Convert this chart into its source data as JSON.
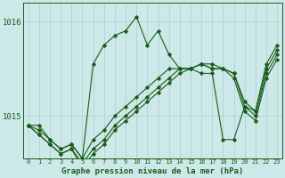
{
  "bg_color": "#cce8e8",
  "line_color": "#1a5c1a",
  "grid_color": "#aacfcf",
  "title": "Graphe pression niveau de la mer (hPa)",
  "xlim": [
    -0.5,
    23.5
  ],
  "ylim": [
    1014.55,
    1016.2
  ],
  "series": [
    [
      1014.9,
      1014.9,
      1014.75,
      1014.65,
      1014.7,
      1014.55,
      1015.55,
      1015.75,
      1015.85,
      1015.9,
      1016.05,
      1015.75,
      1015.9,
      1015.65,
      1015.5,
      1015.5,
      1015.45,
      1015.45,
      1014.75,
      1014.75,
      1015.1,
      1015.05,
      1015.55,
      1015.75
    ],
    [
      1014.9,
      1014.85,
      1014.75,
      1014.65,
      1014.7,
      1014.55,
      1014.75,
      1014.85,
      1015.0,
      1015.1,
      1015.2,
      1015.3,
      1015.4,
      1015.5,
      1015.5,
      1015.5,
      1015.55,
      1015.55,
      1015.5,
      1015.45,
      1015.15,
      1015.05,
      1015.5,
      1015.7
    ],
    [
      1014.9,
      1014.8,
      1014.7,
      1014.6,
      1014.65,
      1014.5,
      1014.65,
      1014.75,
      1014.9,
      1015.0,
      1015.1,
      1015.2,
      1015.3,
      1015.4,
      1015.5,
      1015.5,
      1015.55,
      1015.5,
      1015.5,
      1015.45,
      1015.1,
      1015.0,
      1015.45,
      1015.65
    ],
    [
      1014.9,
      1014.8,
      1014.7,
      1014.6,
      1014.65,
      1014.45,
      1014.6,
      1014.7,
      1014.85,
      1014.95,
      1015.05,
      1015.15,
      1015.25,
      1015.35,
      1015.45,
      1015.5,
      1015.55,
      1015.5,
      1015.5,
      1015.4,
      1015.05,
      1014.95,
      1015.4,
      1015.6
    ]
  ],
  "xtick_labels": [
    "0",
    "1",
    "2",
    "3",
    "4",
    "5",
    "6",
    "7",
    "8",
    "9",
    "10",
    "11",
    "12",
    "13",
    "14",
    "15",
    "16",
    "17",
    "18",
    "19",
    "20",
    "21",
    "22",
    "23"
  ],
  "ytick_labels": [
    "1015",
    "1016"
  ],
  "ytick_pos": [
    1015.0,
    1016.0
  ]
}
